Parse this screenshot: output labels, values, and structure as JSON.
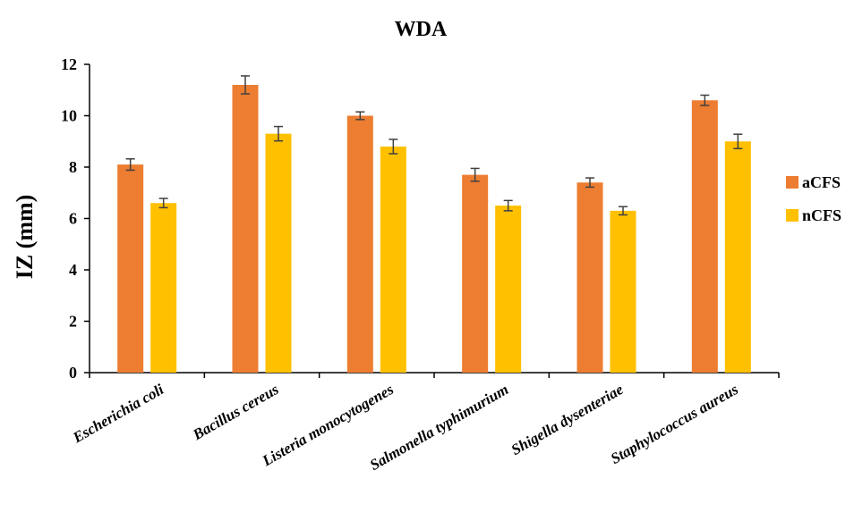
{
  "chart_data": {
    "type": "bar",
    "title": "WDA",
    "xlabel": "",
    "ylabel": "IZ (mm)",
    "ylim": [
      0,
      12
    ],
    "yticks": [
      "0",
      "2",
      "4",
      "6",
      "8",
      "10",
      "12"
    ],
    "grid": false,
    "legend_position": "right",
    "categories": [
      "Escherichia coli",
      "Bacillus cereus",
      "Listeria monocytogenes",
      "Salmonella typhimurium",
      "Shigella dysenteriae",
      "Staphylococcus aureus"
    ],
    "series": [
      {
        "name": "aCFS",
        "color": "#ED7D31",
        "values": [
          8.1,
          11.2,
          10.0,
          7.7,
          7.4,
          10.6
        ],
        "errors": [
          0.22,
          0.35,
          0.15,
          0.25,
          0.18,
          0.2
        ]
      },
      {
        "name": "nCFS",
        "color": "#FFC000",
        "values": [
          6.6,
          9.3,
          8.8,
          6.5,
          6.3,
          9.0
        ],
        "errors": [
          0.18,
          0.28,
          0.28,
          0.2,
          0.16,
          0.28
        ]
      }
    ]
  }
}
